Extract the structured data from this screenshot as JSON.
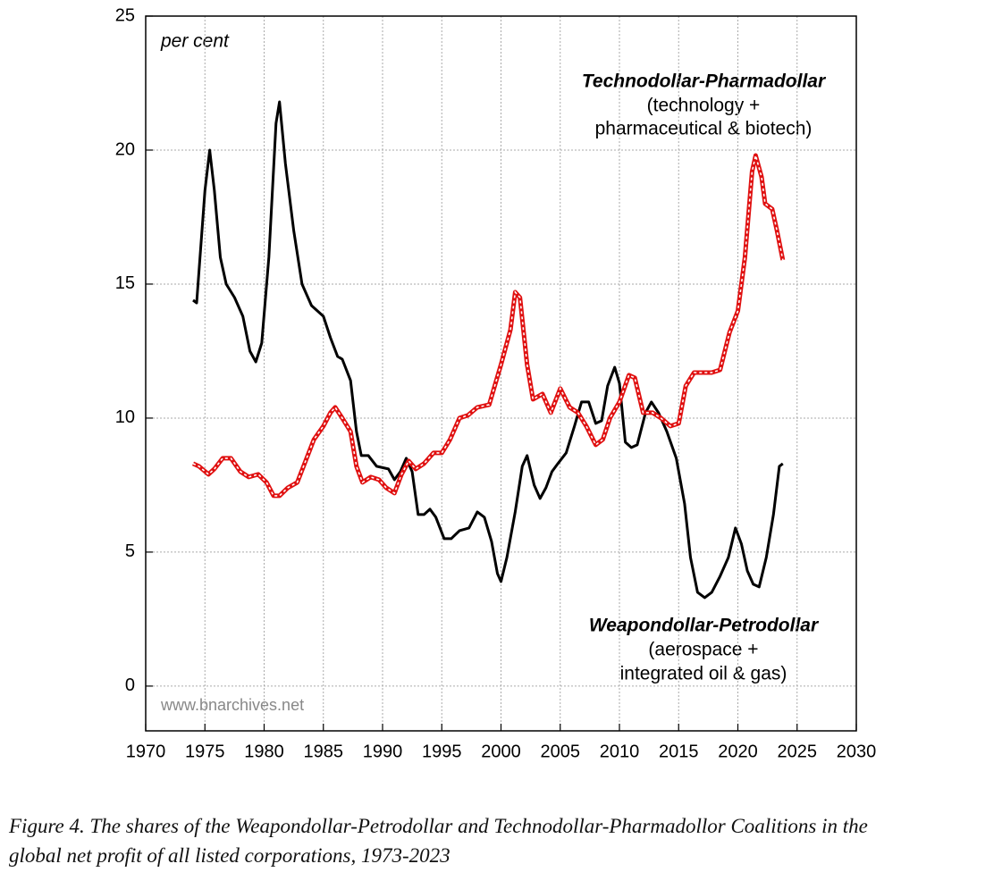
{
  "chart_data": {
    "type": "line",
    "xlim": [
      1970,
      2030
    ],
    "xticks": [
      1970,
      1975,
      1980,
      1985,
      1990,
      1995,
      2000,
      2005,
      2010,
      2015,
      2020,
      2025,
      2030
    ],
    "ylim": [
      -1.67,
      25
    ],
    "yticks": [
      0,
      5,
      10,
      15,
      20,
      25
    ],
    "grid": true,
    "y_label": "per cent",
    "watermark": "www.bnarchives.net",
    "series": [
      {
        "name": "Weapondollar-Petrodollar",
        "subtitle": [
          "(aerospace +",
          "integrated oil & gas)"
        ],
        "color": "#000000",
        "style": "solid",
        "x": [
          1974.0,
          1974.3,
          1975,
          1975.4,
          1975.8,
          1976.3,
          1976.8,
          1977.5,
          1978.2,
          1978.8,
          1979.3,
          1979.8,
          1980.4,
          1981.0,
          1981.3,
          1981.8,
          1982.5,
          1983.2,
          1984,
          1985,
          1985.6,
          1986.2,
          1986.6,
          1987.3,
          1987.8,
          1988.2,
          1988.8,
          1989.5,
          1990.5,
          1991,
          1991.5,
          1992.0,
          1992.5,
          1993.0,
          1993.5,
          1994,
          1994.5,
          1995.2,
          1995.8,
          1996.5,
          1997.3,
          1998.0,
          1998.6,
          1999.2,
          1999.7,
          2000.0,
          2000.5,
          2001.2,
          2001.8,
          2002.2,
          2002.8,
          2003.3,
          2003.8,
          2004.3,
          2004.8,
          2005.5,
          2006.2,
          2006.8,
          2007.4,
          2008.0,
          2008.5,
          2009.0,
          2009.6,
          2010.0,
          2010.5,
          2011.0,
          2011.5,
          2012.2,
          2012.7,
          2013.3,
          2014.0,
          2014.8,
          2015.5,
          2016.0,
          2016.6,
          2017.2,
          2017.8,
          2018.5,
          2019.2,
          2019.8,
          2020.3,
          2020.8,
          2021.3,
          2021.8,
          2022.4,
          2023.0,
          2023.5,
          2023.8
        ],
        "values": [
          14.4,
          14.3,
          18.5,
          20.0,
          18.5,
          16,
          15,
          14.5,
          13.8,
          12.5,
          12.1,
          12.8,
          16,
          21,
          21.8,
          19.5,
          17,
          15,
          14.2,
          13.8,
          13,
          12.3,
          12.2,
          11.4,
          9.5,
          8.6,
          8.6,
          8.2,
          8.1,
          7.7,
          8.0,
          8.5,
          8.0,
          6.4,
          6.4,
          6.6,
          6.3,
          5.5,
          5.5,
          5.8,
          5.9,
          6.5,
          6.3,
          5.4,
          4.2,
          3.9,
          4.8,
          6.5,
          8.2,
          8.6,
          7.5,
          7.0,
          7.4,
          8.0,
          8.3,
          8.7,
          9.7,
          10.6,
          10.6,
          9.8,
          9.9,
          11.2,
          11.9,
          11.3,
          9.1,
          8.9,
          9.0,
          10.2,
          10.6,
          10.2,
          9.5,
          8.5,
          6.8,
          4.8,
          3.5,
          3.3,
          3.5,
          4.1,
          4.8,
          5.9,
          5.3,
          4.3,
          3.8,
          3.7,
          4.8,
          6.4,
          8.2,
          8.3
        ]
      },
      {
        "name": "Technodollar-Pharmadollar",
        "subtitle": [
          "(technology +",
          "pharmaceutical & biotech)"
        ],
        "color": "#e01010",
        "style": "dashed-white",
        "x": [
          1974,
          1974.5,
          1975.3,
          1975.8,
          1976.5,
          1977.2,
          1978,
          1978.7,
          1979.5,
          1980.2,
          1980.8,
          1981.3,
          1982,
          1982.8,
          1983.5,
          1984.2,
          1985,
          1985.6,
          1986,
          1986.6,
          1987.3,
          1987.8,
          1988.3,
          1989,
          1989.7,
          1990.3,
          1991,
          1991.6,
          1992.2,
          1992.8,
          1993.5,
          1994.3,
          1995.0,
          1995.7,
          1996.5,
          1997.2,
          1998,
          1999,
          2000.0,
          2000.8,
          2001.2,
          2001.6,
          2002.2,
          2002.7,
          2003.5,
          2004.2,
          2005,
          2005.8,
          2006.5,
          2007.2,
          2008,
          2008.6,
          2009.2,
          2010,
          2010.8,
          2011.3,
          2012.0,
          2012.8,
          2013.5,
          2014.3,
          2015.0,
          2015.6,
          2016.3,
          2017,
          2017.8,
          2018.5,
          2019.3,
          2020,
          2020.6,
          2021.2,
          2021.5,
          2022.0,
          2022.3,
          2022.9,
          2023.3,
          2023.8
        ],
        "values": [
          8.3,
          8.2,
          7.9,
          8.1,
          8.5,
          8.5,
          8.0,
          7.8,
          7.9,
          7.6,
          7.1,
          7.1,
          7.4,
          7.6,
          8.4,
          9.2,
          9.7,
          10.2,
          10.4,
          10.0,
          9.5,
          8.2,
          7.6,
          7.8,
          7.7,
          7.4,
          7.2,
          7.9,
          8.4,
          8.1,
          8.3,
          8.7,
          8.7,
          9.2,
          10.0,
          10.1,
          10.4,
          10.5,
          12.0,
          13.3,
          14.7,
          14.5,
          12.0,
          10.7,
          10.9,
          10.2,
          11.1,
          10.4,
          10.2,
          9.7,
          9.0,
          9.2,
          10.0,
          10.6,
          11.6,
          11.5,
          10.2,
          10.2,
          10.0,
          9.7,
          9.8,
          11.2,
          11.7,
          11.7,
          11.7,
          11.8,
          13.2,
          14.0,
          16,
          19.2,
          19.8,
          19.0,
          18.0,
          17.8,
          17.0,
          15.9
        ]
      }
    ],
    "caption": [
      "Figure 4. The shares of the Weapondollar-Petrodollar and Technodollar-Pharmadollor Coalitions in the",
      "global net profit of all listed corporations, 1973-2023"
    ]
  }
}
